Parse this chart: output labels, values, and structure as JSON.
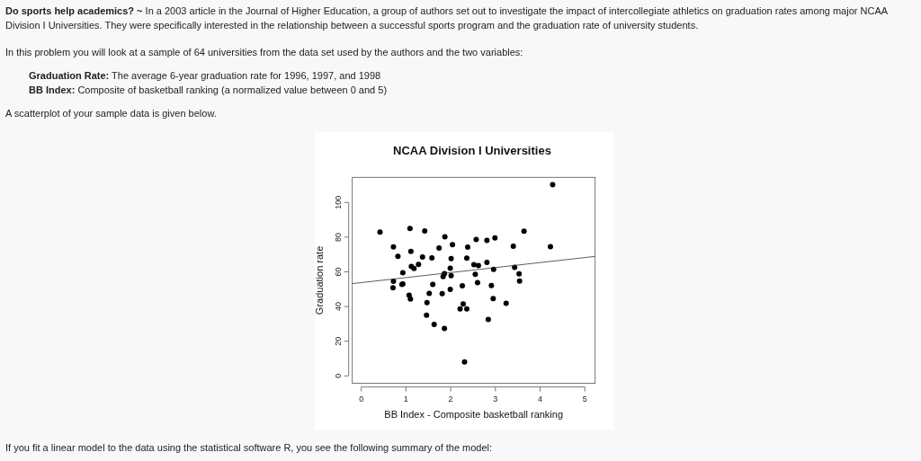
{
  "chart_data": {
    "type": "scatter",
    "title": "NCAA Division I Universities",
    "xlabel": "BB Index - Composite basketball ranking",
    "ylabel": "Graduation rate",
    "annotations": [
      "Do sports help academics? ~ In a 2003 article in the Journal of Higher Education, a group of authors set out to investigate the impact of intercollegiate athletics on graduation rates among major NCAA Division I Universities. They were specifically interested in the relationship between a successful sports program and the graduation rate of university students.",
      "In this problem you will look at a sample of 64 universities from the data set used by the authors and the two variables:",
      "Graduation Rate: The average 6-year graduation rate for 1996, 1997, and 1998",
      "BB Index: Composite of basketball ranking (a normalized value between 0 and 5)",
      "A scatterplot of your sample data is given below.",
      "If you fit a linear model to the data using the statistical software R, you see the following summary of the model:"
    ],
    "xlim": [
      -0.2,
      5.23
    ],
    "ylim": [
      -4.3,
      114.5
    ],
    "xticks": [
      0,
      1,
      2,
      3,
      4,
      5
    ],
    "yticks": [
      0,
      20,
      40,
      60,
      80,
      100
    ],
    "grid": false,
    "marker": "circle",
    "series": [
      {
        "color": "#000000",
        "x": [
          4.28,
          0.42,
          1.09,
          1.42,
          1.87,
          0.72,
          1.11,
          0.82,
          1.37,
          1.74,
          2.04,
          2.38,
          2.57,
          2.81,
          2.99,
          3.4,
          3.64,
          4.23,
          1.58,
          2.01,
          2.36,
          1.28,
          1.12,
          1.18,
          0.93,
          2.52,
          2.62,
          2.81,
          1.99,
          2.96,
          3.43,
          3.53,
          1.86,
          1.83,
          2.01,
          2.55,
          0.72,
          0.71,
          0.91,
          0.93,
          1.6,
          1.52,
          1.81,
          1.99,
          2.26,
          2.6,
          2.91,
          1.07,
          1.1,
          1.47,
          2.28,
          2.21,
          2.36,
          2.95,
          3.24,
          3.54,
          1.46,
          1.63,
          1.86,
          2.84,
          2.31
        ],
        "values": [
          110.3,
          82.9,
          85,
          83.6,
          80.2,
          74.4,
          71.8,
          68.9,
          68.5,
          73.7,
          75.7,
          74.2,
          78.6,
          78.1,
          79.5,
          74.7,
          83.4,
          74.5,
          68,
          67.7,
          67.9,
          64.3,
          63.1,
          61.9,
          59.5,
          64.1,
          63.6,
          65.5,
          62.1,
          61.4,
          62.6,
          58.8,
          59,
          57.3,
          57.8,
          58.6,
          54.5,
          50.8,
          52.8,
          53,
          52.8,
          47.5,
          47.4,
          49.9,
          52,
          53.8,
          52.1,
          46.5,
          44.3,
          42.2,
          41.5,
          38.6,
          38.6,
          44.6,
          41.9,
          54.7,
          35,
          29.7,
          27.4,
          32.5,
          8
        ]
      },
      {
        "type": "line",
        "color": "#333333",
        "line_style": "solid",
        "marker": "none",
        "x": [
          -0.2,
          5.23
        ],
        "values": [
          53.2,
          68.9
        ]
      }
    ]
  }
}
